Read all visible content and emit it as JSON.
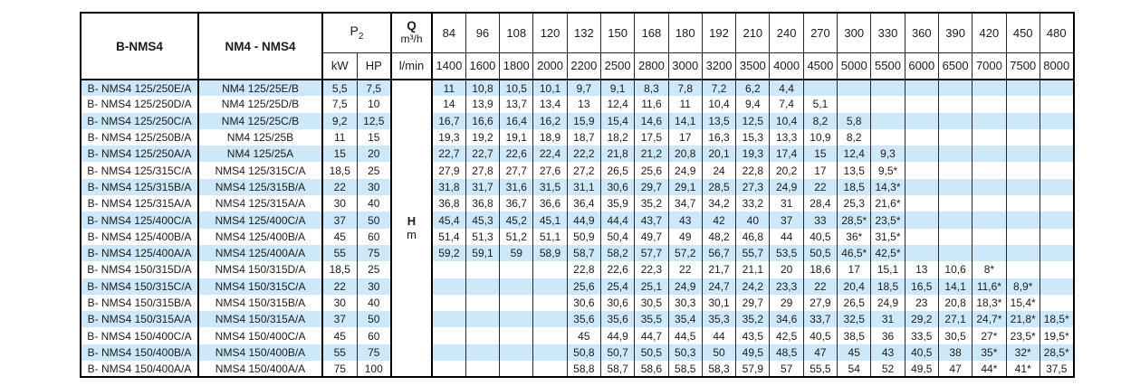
{
  "table": {
    "headers": {
      "col1": "B-NMS4",
      "col2": "NM4 - NMS4",
      "p2_base": "P",
      "p2_sub": "2",
      "kw": "kW",
      "hp": "HP",
      "q_label": "Q",
      "q_unit": "m³/h",
      "lmin": "l/min",
      "flow_m3h": [
        "84",
        "96",
        "108",
        "120",
        "132",
        "150",
        "168",
        "180",
        "192",
        "210",
        "240",
        "270",
        "300",
        "330",
        "360",
        "390",
        "420",
        "450",
        "480"
      ],
      "flow_lmin": [
        "1400",
        "1600",
        "1800",
        "2000",
        "2200",
        "2500",
        "2800",
        "3000",
        "3200",
        "3500",
        "4000",
        "4500",
        "5000",
        "5500",
        "6000",
        "6500",
        "7000",
        "7500",
        "8000"
      ]
    },
    "head_label": {
      "h": "H",
      "m": "m"
    },
    "colors": {
      "stripe": "#cde8f8",
      "border": "#000000",
      "text": "#1c1c1c"
    },
    "rows": [
      {
        "b": "B- NMS4 125/250E/A",
        "nm": "NM4 125/25E/B",
        "kw": "5,5",
        "hp": "7,5",
        "values": [
          "11",
          "10,8",
          "10,5",
          "10,1",
          "9,7",
          "9,1",
          "8,3",
          "7,8",
          "7,2",
          "6,2",
          "4,4",
          "",
          "",
          "",
          "",
          "",
          "",
          "",
          ""
        ]
      },
      {
        "b": "B- NMS4 125/250D/A",
        "nm": "NM4 125/25D/B",
        "kw": "7,5",
        "hp": "10",
        "values": [
          "14",
          "13,9",
          "13,7",
          "13,4",
          "13",
          "12,4",
          "11,6",
          "11",
          "10,4",
          "9,4",
          "7,4",
          "5,1",
          "",
          "",
          "",
          "",
          "",
          "",
          ""
        ]
      },
      {
        "b": "B- NMS4 125/250C/A",
        "nm": "NM4 125/25C/B",
        "kw": "9,2",
        "hp": "12,5",
        "values": [
          "16,7",
          "16,6",
          "16,4",
          "16,2",
          "15,9",
          "15,4",
          "14,6",
          "14,1",
          "13,5",
          "12,5",
          "10,4",
          "8,2",
          "5,8",
          "",
          "",
          "",
          "",
          "",
          ""
        ]
      },
      {
        "b": "B- NMS4 125/250B/A",
        "nm": "NM4 125/25B",
        "kw": "11",
        "hp": "15",
        "values": [
          "19,3",
          "19,2",
          "19,1",
          "18,9",
          "18,7",
          "18,2",
          "17,5",
          "17",
          "16,3",
          "15,3",
          "13,3",
          "10,9",
          "8,2",
          "",
          "",
          "",
          "",
          "",
          ""
        ]
      },
      {
        "b": "B- NMS4 125/250A/A",
        "nm": "NM4 125/25A",
        "kw": "15",
        "hp": "20",
        "values": [
          "22,7",
          "22,7",
          "22,6",
          "22,4",
          "22,2",
          "21,8",
          "21,2",
          "20,8",
          "20,1",
          "19,3",
          "17,4",
          "15",
          "12,4",
          "9,3",
          "",
          "",
          "",
          "",
          ""
        ]
      },
      {
        "b": "B- NMS4 125/315C/A",
        "nm": "NMS4 125/315C/A",
        "kw": "18,5",
        "hp": "25",
        "values": [
          "27,9",
          "27,8",
          "27,7",
          "27,6",
          "27,2",
          "26,5",
          "25,6",
          "24,9",
          "24",
          "22,8",
          "20,2",
          "17",
          "13,5",
          "9,5*",
          "",
          "",
          "",
          "",
          ""
        ]
      },
      {
        "b": "B- NMS4 125/315B/A",
        "nm": "NMS4 125/315B/A",
        "kw": "22",
        "hp": "30",
        "values": [
          "31,8",
          "31,7",
          "31,6",
          "31,5",
          "31,1",
          "30,6",
          "29,7",
          "29,1",
          "28,5",
          "27,3",
          "24,9",
          "22",
          "18,5",
          "14,3*",
          "",
          "",
          "",
          "",
          ""
        ]
      },
      {
        "b": "B- NMS4 125/315A/A",
        "nm": "NMS4 125/315A/A",
        "kw": "30",
        "hp": "40",
        "values": [
          "36,8",
          "36,8",
          "36,7",
          "36,6",
          "36,4",
          "35,9",
          "35,2",
          "34,7",
          "34,2",
          "33,2",
          "31",
          "28,4",
          "25,3",
          "21,6*",
          "",
          "",
          "",
          "",
          ""
        ]
      },
      {
        "b": "B- NMS4 125/400C/A",
        "nm": "NMS4 125/400C/A",
        "kw": "37",
        "hp": "50",
        "values": [
          "45,4",
          "45,3",
          "45,2",
          "45,1",
          "44,9",
          "44,4",
          "43,7",
          "43",
          "42",
          "40",
          "37",
          "33",
          "28,5*",
          "23,5*",
          "",
          "",
          "",
          "",
          ""
        ]
      },
      {
        "b": "B- NMS4 125/400B/A",
        "nm": "NMS4 125/400B/A",
        "kw": "45",
        "hp": "60",
        "values": [
          "51,4",
          "51,3",
          "51,2",
          "51,1",
          "50,9",
          "50,4",
          "49,7",
          "49",
          "48,2",
          "46,8",
          "44",
          "40,5",
          "36*",
          "31,5*",
          "",
          "",
          "",
          "",
          ""
        ]
      },
      {
        "b": "B- NMS4 125/400A/A",
        "nm": "NMS4 125/400A/A",
        "kw": "55",
        "hp": "75",
        "values": [
          "59,2",
          "59,1",
          "59",
          "58,9",
          "58,7",
          "58,2",
          "57,7",
          "57,2",
          "56,7",
          "55,7",
          "53,5",
          "50,5",
          "46,5*",
          "42,5*",
          "",
          "",
          "",
          "",
          ""
        ]
      },
      {
        "b": "B- NMS4 150/315D/A",
        "nm": "NMS4 150/315D/A",
        "kw": "18,5",
        "hp": "25",
        "values": [
          "",
          "",
          "",
          "",
          "22,8",
          "22,6",
          "22,3",
          "22",
          "21,7",
          "21,1",
          "20",
          "18,6",
          "17",
          "15,1",
          "13",
          "10,6",
          "8*",
          "",
          ""
        ]
      },
      {
        "b": "B- NMS4 150/315C/A",
        "nm": "NMS4 150/315C/A",
        "kw": "22",
        "hp": "30",
        "values": [
          "",
          "",
          "",
          "",
          "25,6",
          "25,4",
          "25,1",
          "24,9",
          "24,7",
          "24,2",
          "23,3",
          "22",
          "20,4",
          "18,5",
          "16,5",
          "14,1",
          "11,6*",
          "8,9*",
          ""
        ]
      },
      {
        "b": "B- NMS4 150/315B/A",
        "nm": "NMS4 150/315B/A",
        "kw": "30",
        "hp": "40",
        "values": [
          "",
          "",
          "",
          "",
          "30,6",
          "30,6",
          "30,5",
          "30,3",
          "30,1",
          "29,7",
          "29",
          "27,9",
          "26,5",
          "24,9",
          "23",
          "20,8",
          "18,3*",
          "15,4*",
          ""
        ]
      },
      {
        "b": "B- NMS4 150/315A/A",
        "nm": "NMS4 150/315A/A",
        "kw": "37",
        "hp": "50",
        "values": [
          "",
          "",
          "",
          "",
          "35,6",
          "35,6",
          "35,5",
          "35,4",
          "35,3",
          "35,2",
          "34,6",
          "33,7",
          "32,5",
          "31",
          "29,2",
          "27,1",
          "24,7*",
          "21,8*",
          "18,5*"
        ]
      },
      {
        "b": "B- NMS4 150/400C/A",
        "nm": "NMS4 150/400C/A",
        "kw": "45",
        "hp": "60",
        "values": [
          "",
          "",
          "",
          "",
          "45",
          "44,9",
          "44,7",
          "44,5",
          "44",
          "43,5",
          "42,5",
          "40,5",
          "38,5",
          "36",
          "33,5",
          "30,5",
          "27*",
          "23,5*",
          "19,5*"
        ]
      },
      {
        "b": "B- NMS4 150/400B/A",
        "nm": "NMS4 150/400B/A",
        "kw": "55",
        "hp": "75",
        "values": [
          "",
          "",
          "",
          "",
          "50,8",
          "50,7",
          "50,5",
          "50,3",
          "50",
          "49,5",
          "48,5",
          "47",
          "45",
          "43",
          "40,5",
          "38",
          "35*",
          "32*",
          "28,5*"
        ]
      },
      {
        "b": "B- NMS4 150/400A/A",
        "nm": "NMS4 150/400A/A",
        "kw": "75",
        "hp": "100",
        "values": [
          "",
          "",
          "",
          "",
          "58,8",
          "58,7",
          "58,6",
          "58,5",
          "58,3",
          "57,9",
          "57",
          "55,5",
          "54",
          "52",
          "49,5",
          "47",
          "44*",
          "41*",
          "37,5"
        ]
      }
    ]
  }
}
